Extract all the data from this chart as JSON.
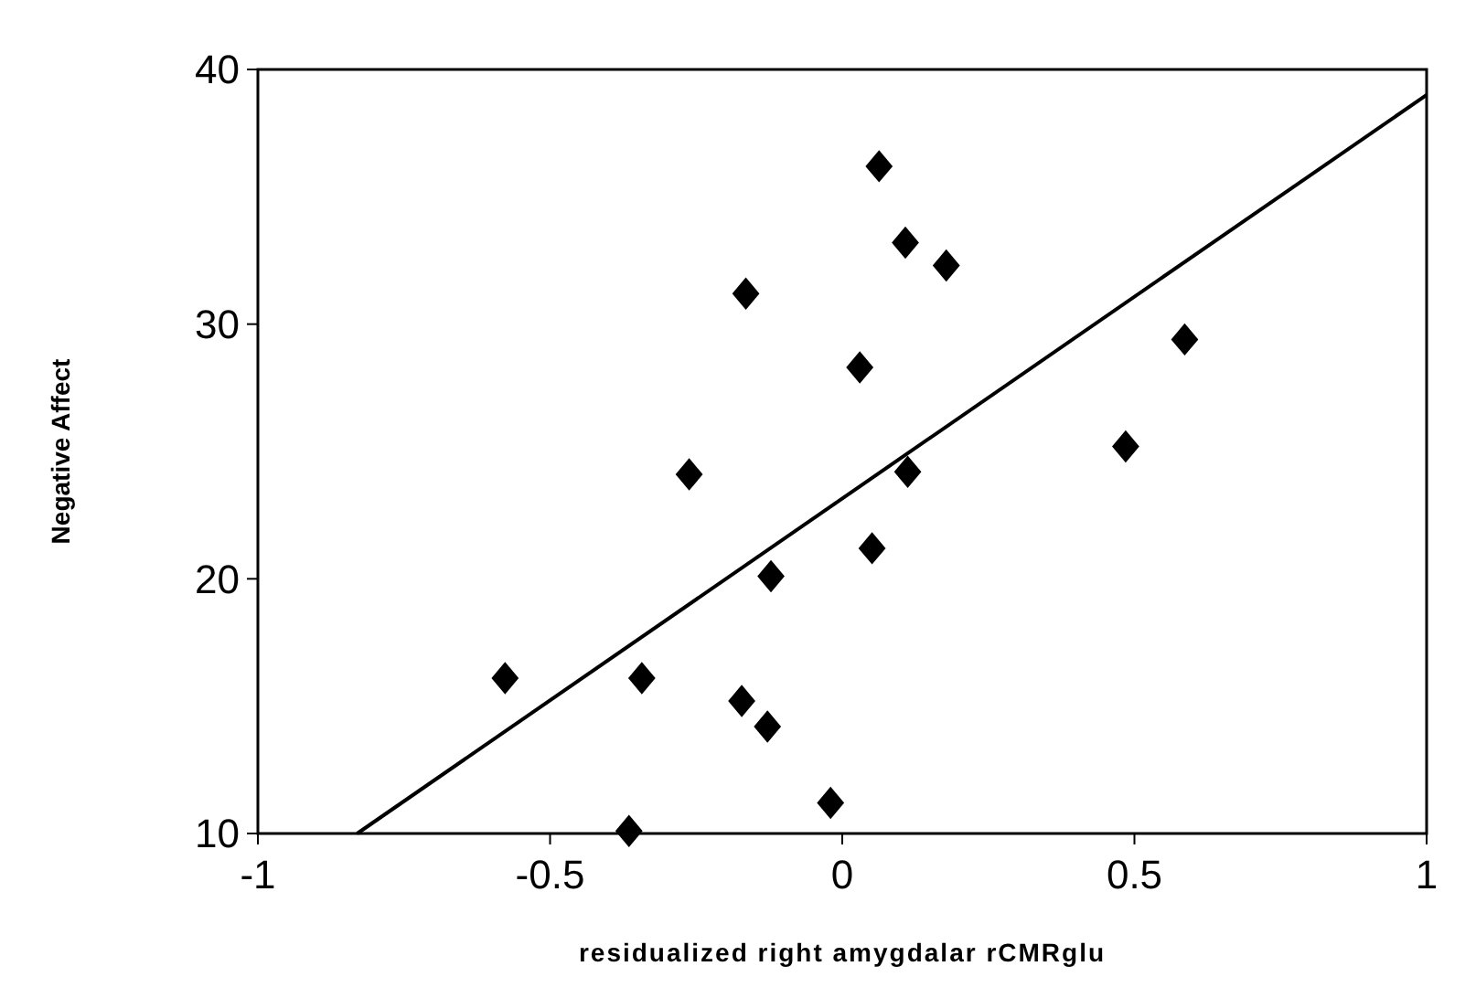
{
  "chart_data": {
    "type": "scatter",
    "xlabel": "residualized right amygdalar rCMRglu",
    "ylabel": "Negative Affect",
    "xlim": [
      -1,
      1
    ],
    "ylim": [
      10,
      40
    ],
    "xticks": [
      -1,
      -0.5,
      0,
      0.5,
      1
    ],
    "yticks": [
      10,
      20,
      30,
      40
    ],
    "grid": false,
    "series": [
      {
        "marker": "diamond",
        "color": "#000000",
        "x": [
          0.063,
          0.108,
          0.178,
          -0.165,
          0.03,
          0.586,
          0.485,
          -0.262,
          0.112,
          0.051,
          -0.122,
          -0.577,
          -0.343,
          -0.172,
          -0.128,
          -0.02,
          -0.365
        ],
        "values": [
          36.2,
          33.2,
          32.3,
          31.2,
          28.3,
          29.4,
          25.2,
          24.1,
          24.2,
          21.2,
          20.1,
          16.1,
          16.1,
          15.2,
          14.2,
          11.2,
          10.1
        ]
      },
      {
        "type": "line",
        "color": "#000000",
        "x": [
          -0.83,
          1
        ],
        "values": [
          10,
          39
        ]
      }
    ]
  }
}
